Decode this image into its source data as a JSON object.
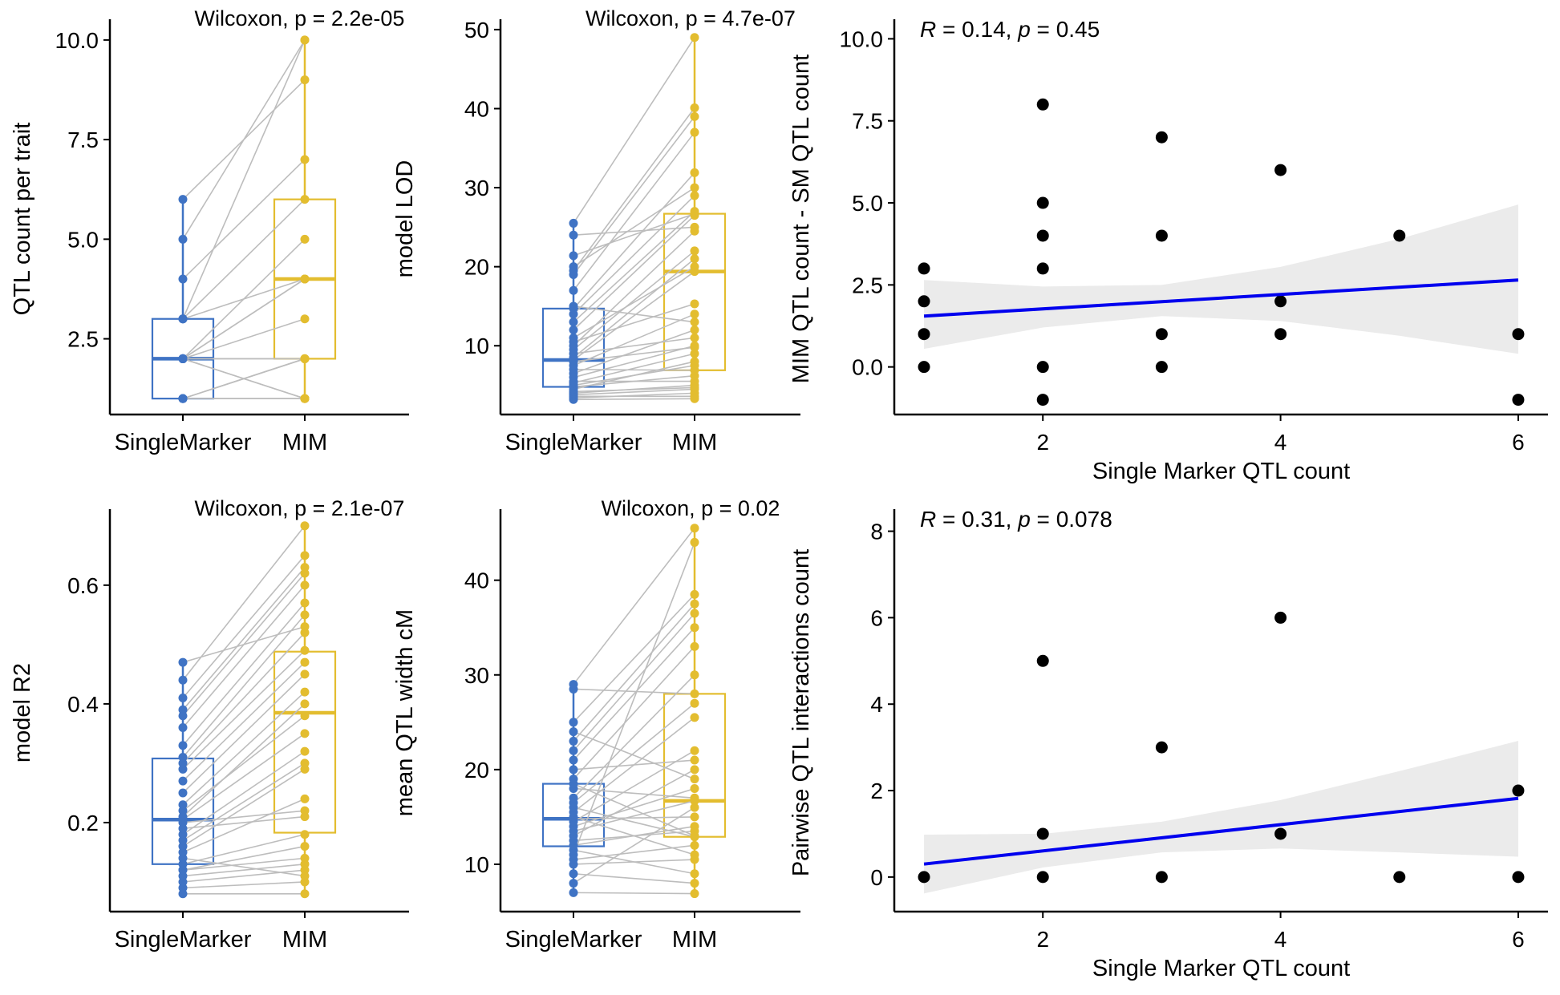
{
  "colors": {
    "single_marker": "#3f73c4",
    "mim": "#e3bd2f",
    "pair_line": "#bdbdbd",
    "point": "#000000",
    "fit_line": "#0000ee",
    "ci_band": "#ebebeb"
  },
  "chart_data": [
    {
      "type": "box-paired",
      "categories": [
        "SingleMarker",
        "MIM"
      ],
      "ylabel": "QTL count per trait",
      "ylim": [
        0.6,
        10.4
      ],
      "yticks": [
        2.5,
        5.0,
        7.5,
        10.0
      ],
      "yticklabels": [
        "2.5",
        "5.0",
        "7.5",
        "10.0"
      ],
      "annotation": "Wilcoxon, p = 2.2e-05",
      "boxes": [
        {
          "q1": 1,
          "median": 2,
          "q3": 3,
          "whisker_low": 1,
          "whisker_high": 6
        },
        {
          "q1": 2,
          "median": 4,
          "q3": 6,
          "whisker_low": 1,
          "whisker_high": 10
        }
      ],
      "pairs": [
        [
          1,
          1
        ],
        [
          1,
          2
        ],
        [
          1,
          1
        ],
        [
          1,
          1
        ],
        [
          2,
          2
        ],
        [
          2,
          1
        ],
        [
          2,
          3
        ],
        [
          2,
          4
        ],
        [
          2,
          5
        ],
        [
          2,
          1
        ],
        [
          3,
          6
        ],
        [
          3,
          4
        ],
        [
          3,
          10
        ],
        [
          4,
          7
        ],
        [
          5,
          10
        ],
        [
          6,
          9
        ],
        [
          1,
          1
        ],
        [
          2,
          2
        ],
        [
          2,
          4
        ],
        [
          1,
          2
        ]
      ]
    },
    {
      "type": "box-paired",
      "categories": [
        "SingleMarker",
        "MIM"
      ],
      "ylabel": "model LOD",
      "ylim": [
        1.3,
        50.7
      ],
      "yticks": [
        10,
        20,
        30,
        40,
        50
      ],
      "yticklabels": [
        "10",
        "20",
        "30",
        "40",
        "50"
      ],
      "annotation": "Wilcoxon, p = 4.7e-07",
      "boxes": [
        {
          "q1": 4.8,
          "median": 8.2,
          "q3": 14.7,
          "whisker_low": 3.2,
          "whisker_high": 25.5
        },
        {
          "q1": 6.9,
          "median": 19.4,
          "q3": 26.7,
          "whisker_low": 3.3,
          "whisker_high": 49.0
        }
      ],
      "pairs": [
        [
          3.2,
          3.3
        ],
        [
          3.4,
          4.0
        ],
        [
          3.6,
          3.6
        ],
        [
          3.8,
          4.5
        ],
        [
          4.0,
          5.0
        ],
        [
          4.2,
          4.7
        ],
        [
          4.5,
          8.0
        ],
        [
          4.8,
          6.2
        ],
        [
          5.0,
          7.5
        ],
        [
          5.3,
          9.0
        ],
        [
          5.5,
          5.5
        ],
        [
          6.0,
          10.0
        ],
        [
          6.5,
          12.0
        ],
        [
          7.0,
          6.9
        ],
        [
          7.5,
          14.0
        ],
        [
          8.0,
          9.8
        ],
        [
          8.2,
          19.4
        ],
        [
          8.5,
          21.0
        ],
        [
          9.0,
          11.0
        ],
        [
          9.5,
          22.0
        ],
        [
          10.0,
          24.5
        ],
        [
          10.5,
          15.3
        ],
        [
          11.0,
          20.0
        ],
        [
          12.0,
          26.5
        ],
        [
          13.0,
          27.0
        ],
        [
          14.0,
          29.0
        ],
        [
          14.7,
          31.9
        ],
        [
          15.0,
          13.0
        ],
        [
          17.0,
          37.0
        ],
        [
          19.0,
          39.0
        ],
        [
          19.5,
          40.1
        ],
        [
          20.0,
          30.0
        ],
        [
          21.4,
          26.7
        ],
        [
          24.0,
          25.0
        ],
        [
          25.5,
          49.0
        ]
      ]
    },
    {
      "type": "box-paired",
      "categories": [
        "SingleMarker",
        "MIM"
      ],
      "ylabel": "model R2",
      "ylim": [
        0.05,
        0.72
      ],
      "yticks": [
        0.2,
        0.4,
        0.6
      ],
      "yticklabels": [
        "0.2",
        "0.4",
        "0.6"
      ],
      "annotation": "Wilcoxon, p = 2.1e-07",
      "boxes": [
        {
          "q1": 0.13,
          "median": 0.205,
          "q3": 0.308,
          "whisker_low": 0.08,
          "whisker_high": 0.47
        },
        {
          "q1": 0.183,
          "median": 0.385,
          "q3": 0.488,
          "whisker_low": 0.08,
          "whisker_high": 0.7
        }
      ],
      "pairs": [
        [
          0.08,
          0.08
        ],
        [
          0.09,
          0.1
        ],
        [
          0.1,
          0.12
        ],
        [
          0.11,
          0.13
        ],
        [
          0.12,
          0.16
        ],
        [
          0.13,
          0.18
        ],
        [
          0.14,
          0.11
        ],
        [
          0.15,
          0.24
        ],
        [
          0.16,
          0.29
        ],
        [
          0.17,
          0.3
        ],
        [
          0.18,
          0.32
        ],
        [
          0.19,
          0.21
        ],
        [
          0.2,
          0.22
        ],
        [
          0.205,
          0.35
        ],
        [
          0.21,
          0.4
        ],
        [
          0.22,
          0.38
        ],
        [
          0.23,
          0.42
        ],
        [
          0.25,
          0.45
        ],
        [
          0.27,
          0.47
        ],
        [
          0.29,
          0.49
        ],
        [
          0.3,
          0.52
        ],
        [
          0.31,
          0.55
        ],
        [
          0.33,
          0.57
        ],
        [
          0.36,
          0.6
        ],
        [
          0.38,
          0.62
        ],
        [
          0.39,
          0.63
        ],
        [
          0.41,
          0.65
        ],
        [
          0.44,
          0.7
        ],
        [
          0.47,
          0.53
        ],
        [
          0.12,
          0.14
        ]
      ]
    },
    {
      "type": "box-paired",
      "categories": [
        "SingleMarker",
        "MIM"
      ],
      "ylabel": "mean QTL width cM",
      "ylim": [
        5.0,
        47.0
      ],
      "yticks": [
        10,
        20,
        30,
        40
      ],
      "yticklabels": [
        "10",
        "20",
        "30",
        "40"
      ],
      "annotation": "Wilcoxon, p = 0.02",
      "boxes": [
        {
          "q1": 11.9,
          "median": 14.8,
          "q3": 18.5,
          "whisker_low": 7.0,
          "whisker_high": 29.0
        },
        {
          "q1": 12.9,
          "median": 16.7,
          "q3": 28.0,
          "whisker_low": 6.9,
          "whisker_high": 45.5
        }
      ],
      "pairs": [
        [
          7.0,
          6.9
        ],
        [
          8.0,
          16.0
        ],
        [
          9.0,
          8.0
        ],
        [
          10.0,
          10.5
        ],
        [
          10.5,
          12.0
        ],
        [
          11.0,
          44.0
        ],
        [
          11.5,
          9.0
        ],
        [
          12.0,
          14.0
        ],
        [
          12.5,
          13.5
        ],
        [
          13.0,
          20.0
        ],
        [
          13.5,
          16.7
        ],
        [
          14.0,
          18.0
        ],
        [
          14.5,
          22.0
        ],
        [
          14.8,
          15.0
        ],
        [
          15.0,
          11.0
        ],
        [
          15.5,
          25.5
        ],
        [
          16.0,
          12.9
        ],
        [
          16.5,
          27.0
        ],
        [
          17.0,
          30.0
        ],
        [
          18.0,
          17.0
        ],
        [
          18.5,
          13.0
        ],
        [
          19.0,
          33.0
        ],
        [
          20.0,
          21.0
        ],
        [
          21.0,
          35.0
        ],
        [
          22.0,
          36.5
        ],
        [
          23.0,
          37.5
        ],
        [
          24.0,
          19.0
        ],
        [
          25.0,
          38.5
        ],
        [
          28.5,
          28.0
        ],
        [
          29.0,
          45.5
        ]
      ]
    },
    {
      "type": "scatter",
      "xlabel": "Single Marker QTL count",
      "ylabel": "MIM QTL count - SM QTL count",
      "xlim": [
        0.75,
        6.25
      ],
      "ylim": [
        -1.45,
        10.45
      ],
      "xticks": [
        2,
        4,
        6
      ],
      "xticklabels": [
        "2",
        "4",
        "6"
      ],
      "yticks": [
        0.0,
        2.5,
        5.0,
        7.5,
        10.0
      ],
      "yticklabels": [
        "0.0",
        "2.5",
        "5.0",
        "7.5",
        "10.0"
      ],
      "annotation": {
        "r_label": "R",
        "r_text": " = 0.14, ",
        "p_label": "p",
        "p_text": " = 0.45"
      },
      "points": [
        [
          1,
          3
        ],
        [
          1,
          2
        ],
        [
          1,
          1
        ],
        [
          1,
          0
        ],
        [
          2,
          8
        ],
        [
          2,
          5
        ],
        [
          2,
          4
        ],
        [
          2,
          3
        ],
        [
          2,
          0
        ],
        [
          2,
          -1
        ],
        [
          3,
          7
        ],
        [
          3,
          4
        ],
        [
          3,
          1
        ],
        [
          3,
          0
        ],
        [
          4,
          6
        ],
        [
          4,
          2
        ],
        [
          4,
          1
        ],
        [
          5,
          4
        ],
        [
          6,
          1
        ],
        [
          6,
          -1
        ]
      ],
      "fit": {
        "x0": 1,
        "y0": 1.55,
        "x1": 6,
        "y1": 2.65
      },
      "ci_band": {
        "x": [
          1,
          2,
          3,
          4,
          5,
          6
        ],
        "lower": [
          0.55,
          1.2,
          1.55,
          1.4,
          0.95,
          0.4
        ],
        "upper": [
          2.65,
          2.45,
          2.5,
          3.05,
          3.9,
          4.95
        ]
      }
    },
    {
      "type": "scatter",
      "xlabel": "Single Marker QTL count",
      "ylabel": "Pairwise QTL interactions count",
      "xlim": [
        0.75,
        6.25
      ],
      "ylim": [
        -0.8,
        8.4
      ],
      "xticks": [
        2,
        4,
        6
      ],
      "xticklabels": [
        "2",
        "4",
        "6"
      ],
      "yticks": [
        0,
        2,
        4,
        6,
        8
      ],
      "yticklabels": [
        "0",
        "2",
        "4",
        "6",
        "8"
      ],
      "annotation": {
        "r_label": "R",
        "r_text": " = 0.31, ",
        "p_label": "p",
        "p_text": " = 0.078"
      },
      "points": [
        [
          1,
          0
        ],
        [
          2,
          5
        ],
        [
          2,
          1
        ],
        [
          2,
          0
        ],
        [
          3,
          3
        ],
        [
          3,
          0
        ],
        [
          4,
          6
        ],
        [
          4,
          1
        ],
        [
          5,
          0
        ],
        [
          6,
          2
        ],
        [
          6,
          0
        ]
      ],
      "fit": {
        "x0": 1,
        "y0": 0.3,
        "x1": 6,
        "y1": 1.82
      },
      "ci_band": {
        "x": [
          1,
          2,
          3,
          4,
          5,
          6
        ],
        "lower": [
          -0.38,
          0.22,
          0.57,
          0.66,
          0.57,
          0.47
        ],
        "upper": [
          0.98,
          1.0,
          1.28,
          1.78,
          2.45,
          3.15
        ]
      }
    }
  ]
}
